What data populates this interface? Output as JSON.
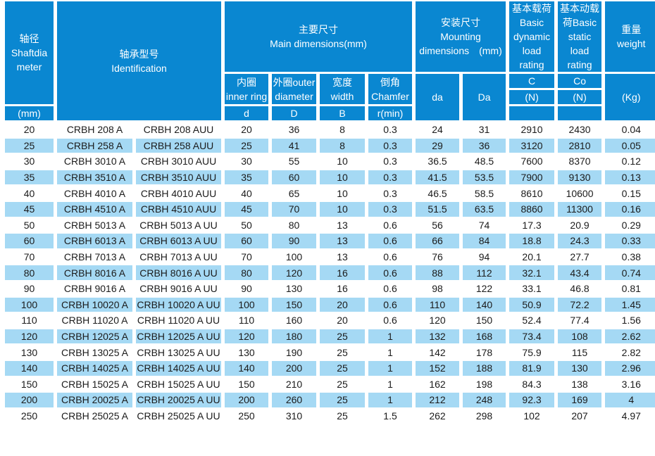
{
  "colors": {
    "header_blue": "#0a87d1",
    "row_alt_blue": "#a5d9f4",
    "data_text": "#1b1b1b",
    "border_white": "#ffffff"
  },
  "table": {
    "header": {
      "shaft": "轴径\nShaftdia\nmeter",
      "shaft_unit": "(mm)",
      "identification": "轴承型号\nIdentification",
      "main_dimensions": "主要尺寸\nMain dimensions(mm)",
      "inner_ring": "内圈\ninner ring",
      "outer_diameter": "外圈outer\ndiameter",
      "width": "宽度\nwidth",
      "chamfer": "倒角\nChamfer",
      "mounting": "安装尺寸\nMounting\ndimensions　(mm)",
      "basic_dynamic": "基本载荷\nBasic\ndynamic\nload\nrating",
      "basic_static": "基本动载\n荷Basic\nstatic\nload\nrating",
      "weight": "重量\nweight",
      "sym_d": "d",
      "sym_D": "D",
      "sym_B": "B",
      "sym_r": "r(min)",
      "sym_da": "da",
      "sym_Da": "Da",
      "sym_C": "C",
      "sym_Co": "Co",
      "unit_N_dynamic": "(N)",
      "unit_N_static": "(N)",
      "unit_kg": "(Kg)"
    },
    "rows": [
      [
        "20",
        "CRBH 208 A",
        "CRBH 208 AUU",
        "20",
        "36",
        "8",
        "0.3",
        "24",
        "31",
        "2910",
        "2430",
        "0.04"
      ],
      [
        "25",
        "CRBH 258 A",
        "CRBH 258 AUU",
        "25",
        "41",
        "8",
        "0.3",
        "29",
        "36",
        "3120",
        "2810",
        "0.05"
      ],
      [
        "30",
        "CRBH 3010 A",
        "CRBH 3010 AUU",
        "30",
        "55",
        "10",
        "0.3",
        "36.5",
        "48.5",
        "7600",
        "8370",
        "0.12"
      ],
      [
        "35",
        "CRBH 3510 A",
        "CRBH 3510 AUU",
        "35",
        "60",
        "10",
        "0.3",
        "41.5",
        "53.5",
        "7900",
        "9130",
        "0.13"
      ],
      [
        "40",
        "CRBH 4010 A",
        "CRBH 4010 AUU",
        "40",
        "65",
        "10",
        "0.3",
        "46.5",
        "58.5",
        "8610",
        "10600",
        "0.15"
      ],
      [
        "45",
        "CRBH 4510 A",
        "CRBH 4510 AUU",
        "45",
        "70",
        "10",
        "0.3",
        "51.5",
        "63.5",
        "8860",
        "11300",
        "0.16"
      ],
      [
        "50",
        "CRBH 5013 A",
        "CRBH 5013 A UU",
        "50",
        "80",
        "13",
        "0.6",
        "56",
        "74",
        "17.3",
        "20.9",
        "0.29"
      ],
      [
        "60",
        "CRBH 6013 A",
        "CRBH 6013 A UU",
        "60",
        "90",
        "13",
        "0.6",
        "66",
        "84",
        "18.8",
        "24.3",
        "0.33"
      ],
      [
        "70",
        "CRBH 7013 A",
        "CRBH 7013 A UU",
        "70",
        "100",
        "13",
        "0.6",
        "76",
        "94",
        "20.1",
        "27.7",
        "0.38"
      ],
      [
        "80",
        "CRBH 8016 A",
        "CRBH 8016 A UU",
        "80",
        "120",
        "16",
        "0.6",
        "88",
        "112",
        "32.1",
        "43.4",
        "0.74"
      ],
      [
        "90",
        "CRBH 9016 A",
        "CRBH 9016 A UU",
        "90",
        "130",
        "16",
        "0.6",
        "98",
        "122",
        "33.1",
        "46.8",
        "0.81"
      ],
      [
        "100",
        "CRBH 10020 A",
        "CRBH 10020 A UU",
        "100",
        "150",
        "20",
        "0.6",
        "110",
        "140",
        "50.9",
        "72.2",
        "1.45"
      ],
      [
        "110",
        "CRBH 11020 A",
        "CRBH 11020 A UU",
        "110",
        "160",
        "20",
        "0.6",
        "120",
        "150",
        "52.4",
        "77.4",
        "1.56"
      ],
      [
        "120",
        "CRBH 12025 A",
        "CRBH 12025 A UU",
        "120",
        "180",
        "25",
        "1",
        "132",
        "168",
        "73.4",
        "108",
        "2.62"
      ],
      [
        "130",
        "CRBH 13025 A",
        "CRBH 13025 A UU",
        "130",
        "190",
        "25",
        "1",
        "142",
        "178",
        "75.9",
        "115",
        "2.82"
      ],
      [
        "140",
        "CRBH 14025 A",
        "CRBH 14025 A UU",
        "140",
        "200",
        "25",
        "1",
        "152",
        "188",
        "81.9",
        "130",
        "2.96"
      ],
      [
        "150",
        "CRBH 15025 A",
        "CRBH 15025 A UU",
        "150",
        "210",
        "25",
        "1",
        "162",
        "198",
        "84.3",
        "138",
        "3.16"
      ],
      [
        "200",
        "CRBH 20025 A",
        "CRBH 20025 A UU",
        "200",
        "260",
        "25",
        "1",
        "212",
        "248",
        "92.3",
        "169",
        "4"
      ],
      [
        "250",
        "CRBH 25025 A",
        "CRBH 25025 A UU",
        "250",
        "310",
        "25",
        "1.5",
        "262",
        "298",
        "102",
        "207",
        "4.97"
      ]
    ]
  }
}
